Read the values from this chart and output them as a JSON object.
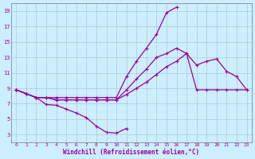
{
  "bg_color": "#cceeff",
  "line_color": "#990099",
  "grid_color": "#aacccc",
  "xlabel": "Windchill (Refroidissement éolien,°C)",
  "xlim": [
    -0.5,
    23.5
  ],
  "ylim": [
    2,
    20
  ],
  "yticks": [
    3,
    5,
    7,
    9,
    11,
    13,
    15,
    17,
    19
  ],
  "xticks": [
    0,
    1,
    2,
    3,
    4,
    5,
    6,
    7,
    8,
    9,
    10,
    11,
    12,
    13,
    14,
    15,
    16,
    17,
    18,
    19,
    20,
    21,
    22,
    23
  ],
  "line1_x": [
    0,
    1,
    2,
    3,
    4,
    5,
    6,
    7,
    8,
    9,
    10,
    11
  ],
  "line1_y": [
    8.8,
    8.3,
    7.8,
    6.9,
    6.8,
    6.3,
    5.8,
    5.2,
    4.1,
    3.3,
    3.2,
    3.8
  ],
  "line2_x": [
    0,
    1,
    2,
    3,
    4,
    5,
    6,
    7,
    8,
    9,
    10,
    11,
    12,
    13,
    14,
    15,
    16
  ],
  "line2_y": [
    8.8,
    8.3,
    7.8,
    7.8,
    7.8,
    7.8,
    7.8,
    7.8,
    7.8,
    7.8,
    7.8,
    10.5,
    12.5,
    14.2,
    16.0,
    18.8,
    19.5
  ],
  "line3_x": [
    0,
    1,
    2,
    3,
    4,
    5,
    6,
    7,
    8,
    9,
    10,
    11,
    12,
    13,
    14,
    15,
    16,
    17,
    18,
    19,
    20,
    21,
    22,
    23
  ],
  "line3_y": [
    8.8,
    8.3,
    7.8,
    7.8,
    7.5,
    7.5,
    7.5,
    7.5,
    7.5,
    7.5,
    7.5,
    8.2,
    9.0,
    9.8,
    10.8,
    11.8,
    12.5,
    13.5,
    8.8,
    8.8,
    8.8,
    8.8,
    8.8,
    8.8
  ],
  "line4_x": [
    0,
    1,
    2,
    3,
    4,
    5,
    6,
    7,
    8,
    9,
    10,
    11,
    12,
    13,
    14,
    15,
    16,
    17,
    18,
    19,
    20,
    21,
    22,
    23
  ],
  "line4_y": [
    8.8,
    8.3,
    7.8,
    7.8,
    7.5,
    7.5,
    7.5,
    7.5,
    7.5,
    7.5,
    7.5,
    8.8,
    10.2,
    11.5,
    13.0,
    13.5,
    14.2,
    13.5,
    12.0,
    12.5,
    12.8,
    11.2,
    10.5,
    8.8
  ]
}
